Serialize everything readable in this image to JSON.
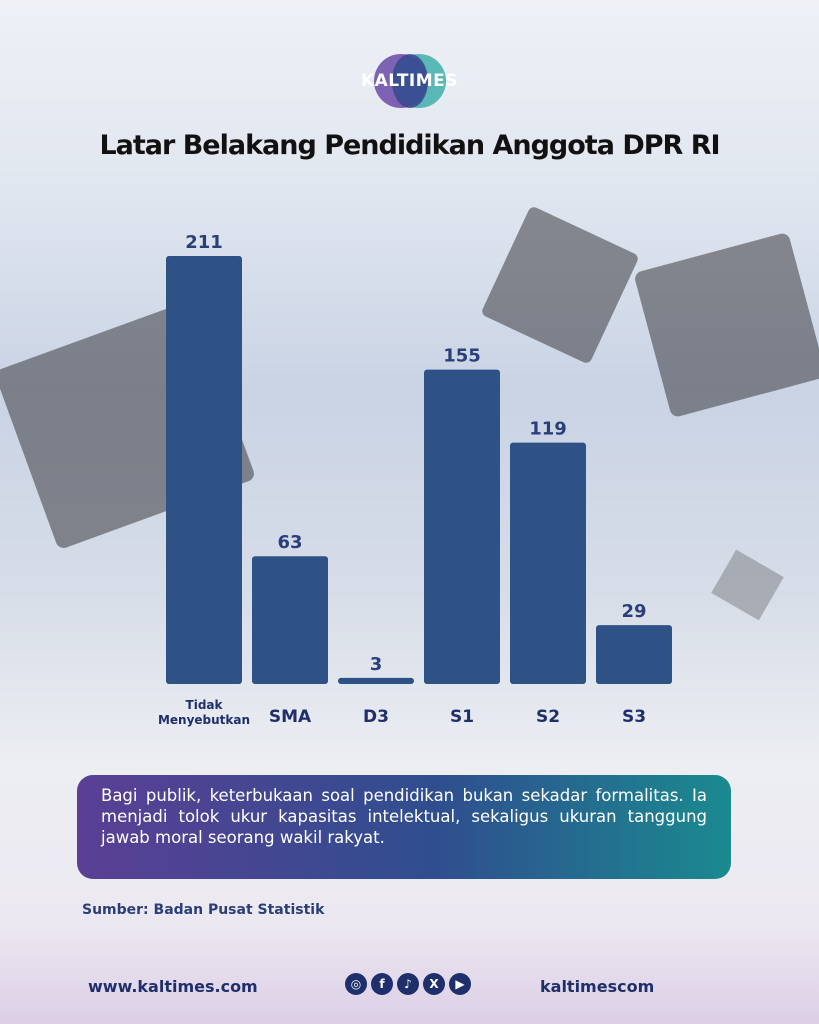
{
  "brand": {
    "logo_text": "KALTIMES"
  },
  "title": "Latar Belakang Pendidikan Anggota DPR RI",
  "chart_data": {
    "type": "bar",
    "title": "Latar Belakang Pendidikan Anggota DPR RI",
    "categories": [
      "Tidak Menyebutkan",
      "SMA",
      "D3",
      "S1",
      "S2",
      "S3"
    ],
    "category_lines": [
      [
        "Tidak",
        "Menyebutkan"
      ],
      [
        "SMA"
      ],
      [
        "D3"
      ],
      [
        "S1"
      ],
      [
        "S2"
      ],
      [
        "S3"
      ]
    ],
    "values": [
      211,
      63,
      3,
      155,
      119,
      29
    ],
    "xlabel": "",
    "ylabel": "",
    "ylim": [
      0,
      211
    ],
    "grid": false,
    "legend": "none",
    "bar_color": "#2e5285",
    "label_color": "#2a3f7a"
  },
  "note": "Bagi publik, keterbukaan soal pendidikan bukan sekadar formalitas. Ia menjadi tolok ukur kapasitas intelektual, sekaligus ukuran tanggung jawab moral seorang wakil rakyat.",
  "source": "Sumber: Badan Pusat Statistik",
  "footer": {
    "url": "www.kaltimes.com",
    "handle": "kaltimescom",
    "social_icons": [
      {
        "name": "instagram-icon",
        "glyph": "◎"
      },
      {
        "name": "facebook-icon",
        "glyph": "f"
      },
      {
        "name": "tiktok-icon",
        "glyph": "♪"
      },
      {
        "name": "x-icon",
        "glyph": "X"
      },
      {
        "name": "youtube-icon",
        "glyph": "▶"
      }
    ]
  }
}
